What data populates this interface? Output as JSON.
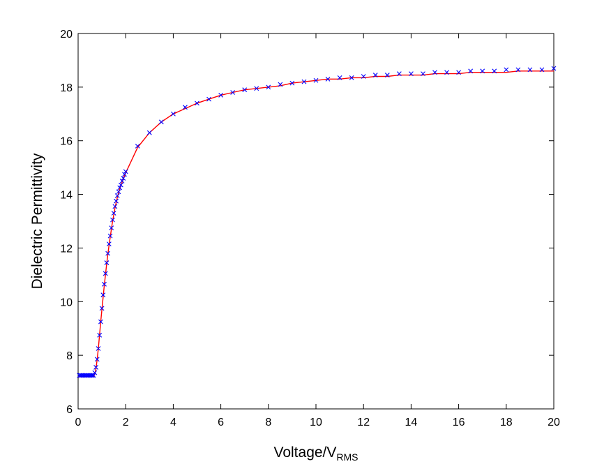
{
  "chart_data": {
    "type": "line",
    "title": "",
    "xlabel": {
      "main": "Voltage/V",
      "subscript": "RMS"
    },
    "ylabel": "Dielectric Permittivity",
    "xlim": [
      0,
      20
    ],
    "ylim": [
      6,
      20
    ],
    "xticks": [
      "0",
      "2",
      "4",
      "6",
      "8",
      "10",
      "12",
      "14",
      "16",
      "18",
      "20"
    ],
    "yticks": [
      "6",
      "8",
      "10",
      "12",
      "14",
      "16",
      "18",
      "20"
    ],
    "grid": false,
    "legend": "none",
    "colors": {
      "fit_line": "#ff0000",
      "markers": "#0000ff",
      "axes": "#000000"
    },
    "series": [
      {
        "marker": "x",
        "x": [
          0.05,
          0.1,
          0.15,
          0.2,
          0.25,
          0.3,
          0.35,
          0.4,
          0.45,
          0.5,
          0.55,
          0.6,
          0.65,
          0.7,
          0.75,
          0.8,
          0.85,
          0.9,
          0.95,
          1.0,
          1.05,
          1.1,
          1.15,
          1.2,
          1.25,
          1.3,
          1.35,
          1.4,
          1.45,
          1.5,
          1.55,
          1.6,
          1.65,
          1.7,
          1.75,
          1.8,
          1.85,
          1.9,
          1.95,
          2.0,
          2.5,
          3.0,
          3.5,
          4.0,
          4.5,
          5.0,
          5.5,
          6.0,
          6.5,
          7.0,
          7.5,
          8.0,
          8.5,
          9.0,
          9.5,
          10.0,
          10.5,
          11.0,
          11.5,
          12.0,
          12.5,
          13.0,
          13.5,
          14.0,
          14.5,
          15.0,
          15.5,
          16.0,
          16.5,
          17.0,
          17.5,
          18.0,
          18.5,
          19.0,
          19.5,
          20.0
        ],
        "y": [
          7.25,
          7.25,
          7.25,
          7.25,
          7.25,
          7.25,
          7.25,
          7.25,
          7.25,
          7.25,
          7.25,
          7.25,
          7.25,
          7.35,
          7.55,
          7.85,
          8.25,
          8.75,
          9.25,
          9.75,
          10.25,
          10.65,
          11.05,
          11.45,
          11.8,
          12.15,
          12.45,
          12.75,
          13.05,
          13.3,
          13.55,
          13.75,
          13.95,
          14.1,
          14.25,
          14.35,
          14.5,
          14.6,
          14.75,
          14.85,
          15.8,
          16.3,
          16.7,
          17.0,
          17.25,
          17.4,
          17.55,
          17.7,
          17.8,
          17.9,
          17.95,
          18.0,
          18.1,
          18.15,
          18.2,
          18.25,
          18.3,
          18.35,
          18.35,
          18.4,
          18.45,
          18.45,
          18.5,
          18.5,
          18.5,
          18.55,
          18.55,
          18.55,
          18.6,
          18.6,
          18.6,
          18.65,
          18.65,
          18.65,
          18.65,
          18.7
        ]
      },
      {
        "marker": "none",
        "x": [
          0,
          0.1,
          0.2,
          0.3,
          0.4,
          0.5,
          0.6,
          0.65,
          0.7,
          0.75,
          0.8,
          0.85,
          0.9,
          0.95,
          1.0,
          1.05,
          1.1,
          1.15,
          1.2,
          1.25,
          1.3,
          1.35,
          1.4,
          1.45,
          1.5,
          1.55,
          1.6,
          1.65,
          1.7,
          1.75,
          1.8,
          1.85,
          1.9,
          1.95,
          2.0,
          2.5,
          3.0,
          3.5,
          4.0,
          4.5,
          5.0,
          5.5,
          6.0,
          6.5,
          7.0,
          7.5,
          8.0,
          8.5,
          9.0,
          9.5,
          10.0,
          10.5,
          11.0,
          11.5,
          12.0,
          12.5,
          13.0,
          13.5,
          14.0,
          14.5,
          15.0,
          15.5,
          16.0,
          16.5,
          17.0,
          17.5,
          18.0,
          18.5,
          19.0,
          19.5,
          20.0
        ],
        "y": [
          7.2,
          7.2,
          7.2,
          7.2,
          7.2,
          7.2,
          7.2,
          7.2,
          7.3,
          7.5,
          7.85,
          8.25,
          8.75,
          9.25,
          9.7,
          10.15,
          10.6,
          11.0,
          11.4,
          11.75,
          12.1,
          12.4,
          12.7,
          13.0,
          13.25,
          13.5,
          13.7,
          13.9,
          14.05,
          14.2,
          14.35,
          14.45,
          14.6,
          14.7,
          14.8,
          15.75,
          16.3,
          16.7,
          17.0,
          17.2,
          17.4,
          17.55,
          17.7,
          17.8,
          17.9,
          17.95,
          18.0,
          18.05,
          18.15,
          18.2,
          18.25,
          18.3,
          18.3,
          18.35,
          18.35,
          18.4,
          18.4,
          18.45,
          18.45,
          18.45,
          18.5,
          18.5,
          18.5,
          18.55,
          18.55,
          18.55,
          18.55,
          18.6,
          18.6,
          18.6,
          18.6
        ]
      }
    ]
  }
}
